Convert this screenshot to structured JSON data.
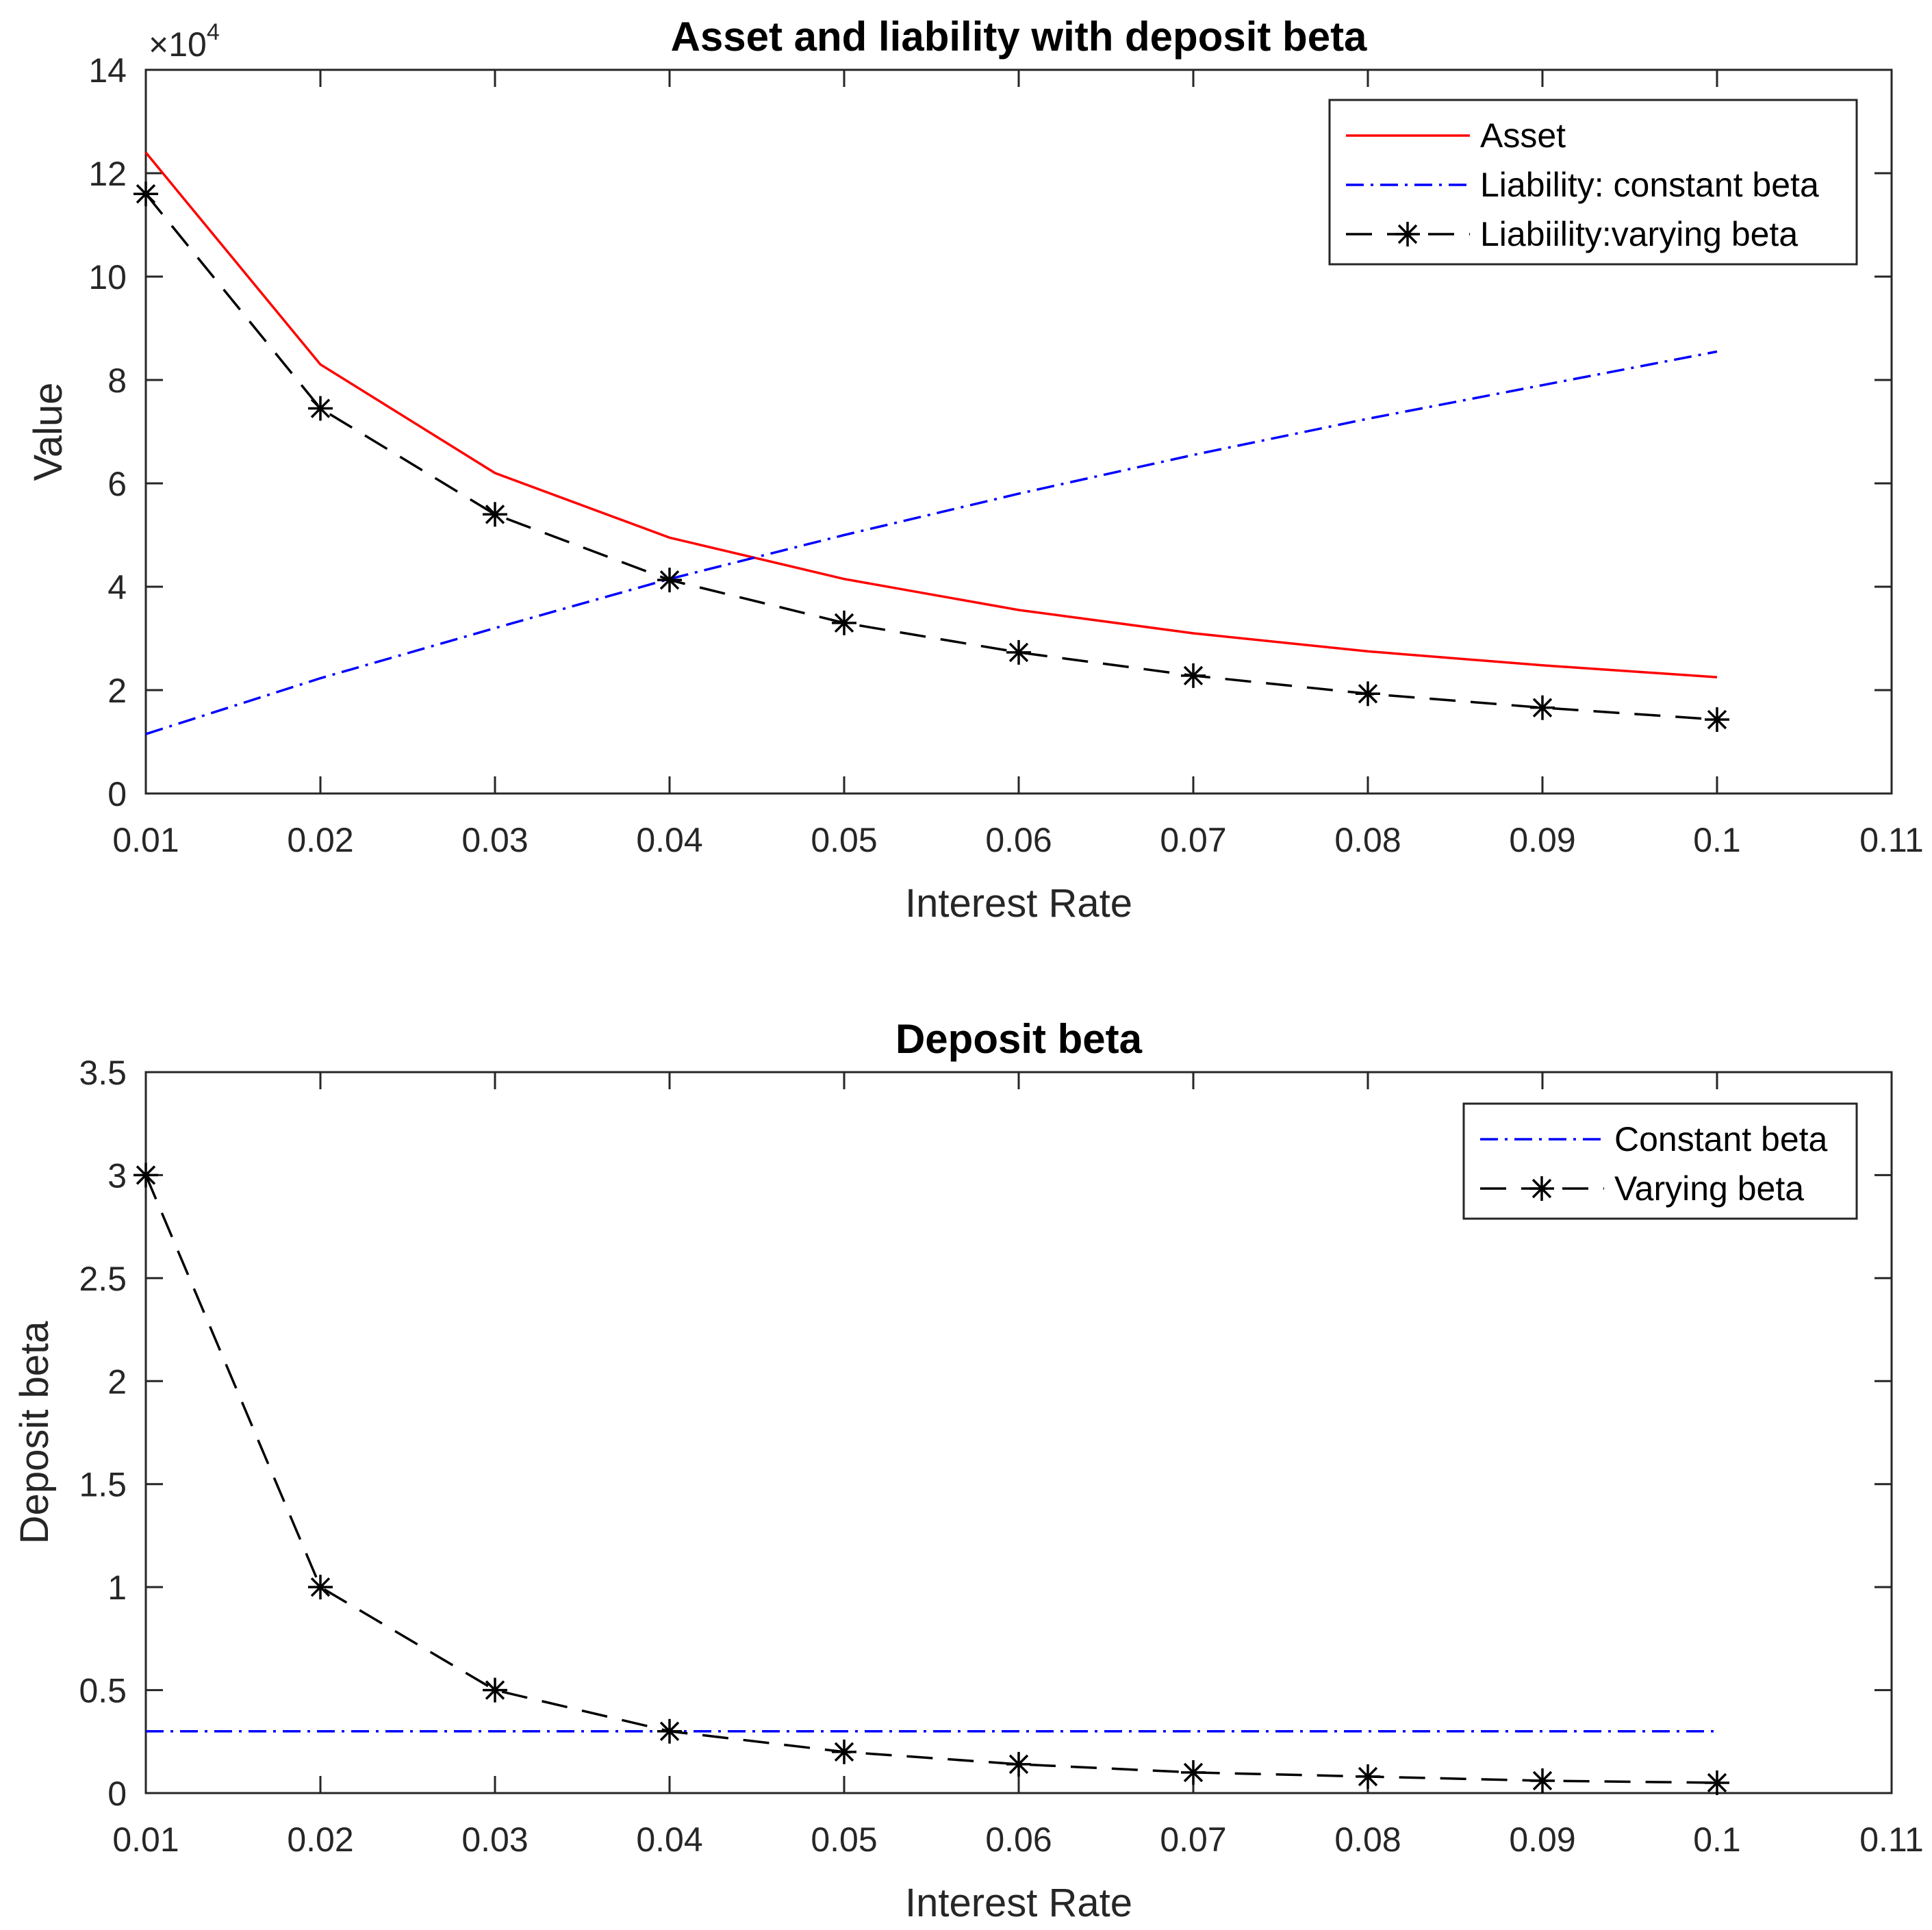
{
  "chart_data": [
    {
      "type": "line",
      "title": "Asset and liability with deposit beta",
      "xlabel": "Interest Rate",
      "ylabel": "Value",
      "xlim": [
        0.01,
        0.11
      ],
      "ylim": [
        0,
        140000
      ],
      "x_ticks": [
        "0.01",
        "0.02",
        "0.03",
        "0.04",
        "0.05",
        "0.06",
        "0.07",
        "0.08",
        "0.09",
        "0.1",
        "0.11"
      ],
      "y_ticks": [
        "0",
        "2",
        "4",
        "6",
        "8",
        "10",
        "12",
        "14"
      ],
      "y_exponent": {
        "base": "×10",
        "power": "4"
      },
      "grid": false,
      "legend_position": "top-right",
      "x": [
        0.01,
        0.02,
        0.03,
        0.04,
        0.05,
        0.06,
        0.07,
        0.08,
        0.09,
        0.1
      ],
      "series": [
        {
          "name": "Asset",
          "color": "#ff0000",
          "style": "solid",
          "marker": "none",
          "values": [
            124000,
            83000,
            62000,
            49500,
            41500,
            35500,
            31000,
            27500,
            24800,
            22500
          ]
        },
        {
          "name": "Liability: constant beta",
          "color": "#0000ff",
          "style": "dashdot",
          "marker": "none",
          "values": [
            11500,
            22300,
            32000,
            41500,
            50000,
            58000,
            65500,
            72500,
            79000,
            85500
          ]
        },
        {
          "name": "Liabiility:varying beta",
          "color": "#000000",
          "style": "dashed",
          "marker": "asterisk",
          "values": [
            116000,
            74500,
            54000,
            41300,
            33000,
            27300,
            22800,
            19300,
            16600,
            14300
          ]
        }
      ]
    },
    {
      "type": "line",
      "title": "Deposit beta",
      "xlabel": "Interest Rate",
      "ylabel": "Deposit beta",
      "xlim": [
        0.01,
        0.11
      ],
      "ylim": [
        0,
        3.5
      ],
      "x_ticks": [
        "0.01",
        "0.02",
        "0.03",
        "0.04",
        "0.05",
        "0.06",
        "0.07",
        "0.08",
        "0.09",
        "0.1",
        "0.11"
      ],
      "y_ticks": [
        "0",
        "0.5",
        "1",
        "1.5",
        "2",
        "2.5",
        "3",
        "3.5"
      ],
      "grid": false,
      "legend_position": "top-right",
      "x": [
        0.01,
        0.02,
        0.03,
        0.04,
        0.05,
        0.06,
        0.07,
        0.08,
        0.09,
        0.1
      ],
      "series": [
        {
          "name": "Constant beta",
          "color": "#0000ff",
          "style": "dashdot",
          "marker": "none",
          "values": [
            0.3,
            0.3,
            0.3,
            0.3,
            0.3,
            0.3,
            0.3,
            0.3,
            0.3,
            0.3
          ]
        },
        {
          "name": "Varying beta",
          "color": "#000000",
          "style": "dashed",
          "marker": "asterisk",
          "values": [
            3.0,
            1.0,
            0.5,
            0.3,
            0.2,
            0.14,
            0.1,
            0.08,
            0.06,
            0.05
          ]
        }
      ]
    }
  ]
}
